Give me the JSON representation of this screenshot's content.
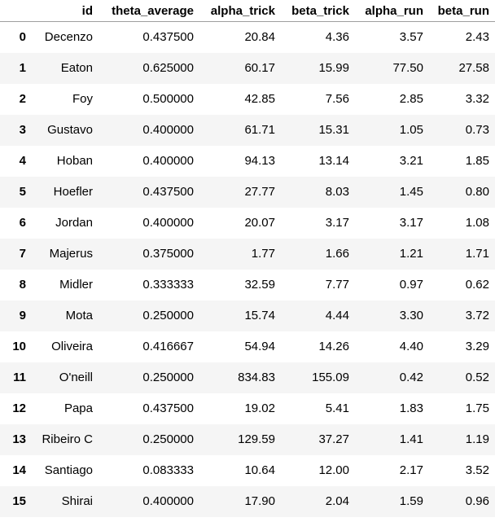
{
  "table": {
    "columns": [
      "",
      "id",
      "theta_average",
      "alpha_trick",
      "beta_trick",
      "alpha_run",
      "beta_run"
    ],
    "rows": [
      [
        "0",
        "Decenzo",
        "0.437500",
        "20.84",
        "4.36",
        "3.57",
        "2.43"
      ],
      [
        "1",
        "Eaton",
        "0.625000",
        "60.17",
        "15.99",
        "77.50",
        "27.58"
      ],
      [
        "2",
        "Foy",
        "0.500000",
        "42.85",
        "7.56",
        "2.85",
        "3.32"
      ],
      [
        "3",
        "Gustavo",
        "0.400000",
        "61.71",
        "15.31",
        "1.05",
        "0.73"
      ],
      [
        "4",
        "Hoban",
        "0.400000",
        "94.13",
        "13.14",
        "3.21",
        "1.85"
      ],
      [
        "5",
        "Hoefler",
        "0.437500",
        "27.77",
        "8.03",
        "1.45",
        "0.80"
      ],
      [
        "6",
        "Jordan",
        "0.400000",
        "20.07",
        "3.17",
        "3.17",
        "1.08"
      ],
      [
        "7",
        "Majerus",
        "0.375000",
        "1.77",
        "1.66",
        "1.21",
        "1.71"
      ],
      [
        "8",
        "Midler",
        "0.333333",
        "32.59",
        "7.77",
        "0.97",
        "0.62"
      ],
      [
        "9",
        "Mota",
        "0.250000",
        "15.74",
        "4.44",
        "3.30",
        "3.72"
      ],
      [
        "10",
        "Oliveira",
        "0.416667",
        "54.94",
        "14.26",
        "4.40",
        "3.29"
      ],
      [
        "11",
        "O'neill",
        "0.250000",
        "834.83",
        "155.09",
        "0.42",
        "0.52"
      ],
      [
        "12",
        "Papa",
        "0.437500",
        "19.02",
        "5.41",
        "1.83",
        "1.75"
      ],
      [
        "13",
        "Ribeiro C",
        "0.250000",
        "129.59",
        "37.27",
        "1.41",
        "1.19"
      ],
      [
        "14",
        "Santiago",
        "0.083333",
        "10.64",
        "12.00",
        "2.17",
        "3.52"
      ],
      [
        "15",
        "Shirai",
        "0.400000",
        "17.90",
        "2.04",
        "1.59",
        "0.96"
      ]
    ]
  },
  "colors": {
    "stripe": "#f5f5f5",
    "header_rule": "#9e9e9e"
  }
}
